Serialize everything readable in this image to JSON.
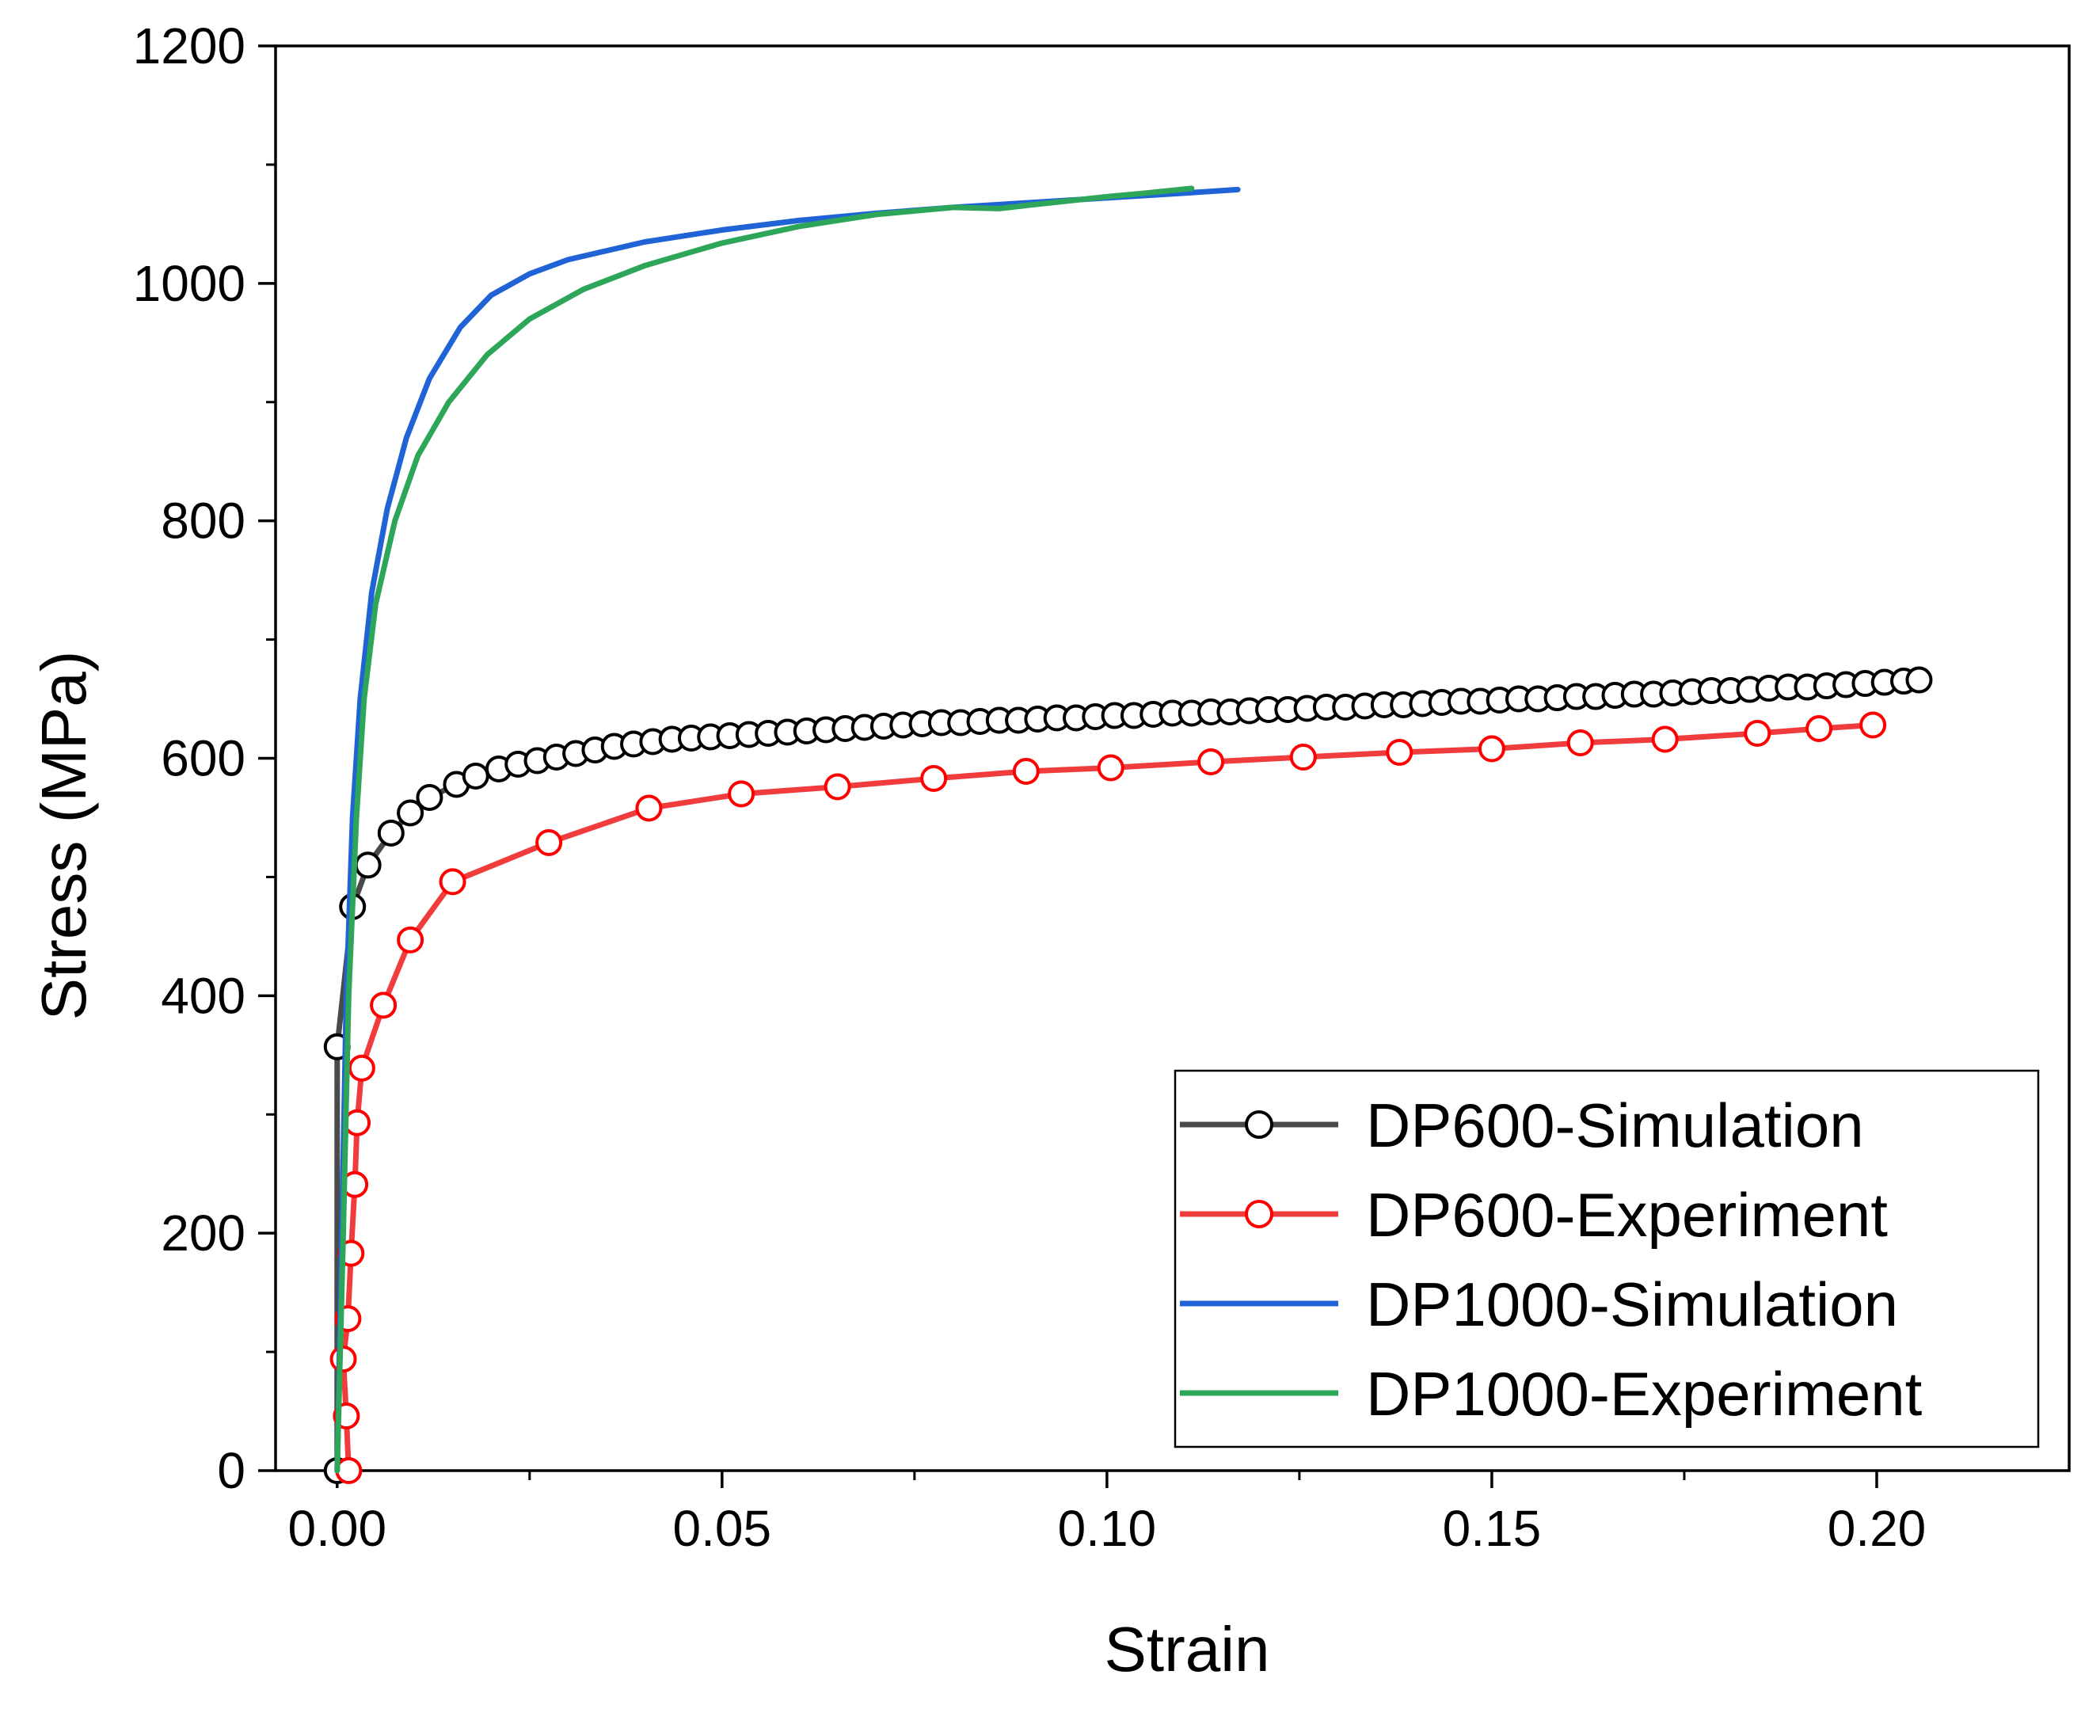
{
  "chart_data": {
    "type": "line",
    "title": "",
    "xlabel": "Strain",
    "ylabel": "Stress (MPa)",
    "xlim": [
      -0.008,
      0.225
    ],
    "ylim": [
      0,
      1200
    ],
    "x_ticks": [
      0.0,
      0.05,
      0.1,
      0.15,
      0.2
    ],
    "x_tick_labels": [
      "0.00",
      "0.05",
      "0.10",
      "0.15",
      "0.20"
    ],
    "y_ticks": [
      0,
      200,
      400,
      600,
      800,
      1000,
      1200
    ],
    "y_tick_labels": [
      "0",
      "200",
      "400",
      "600",
      "800",
      "1000",
      "1200"
    ],
    "grid": false,
    "legend_position": "bottom-right",
    "series": [
      {
        "name": "DP600-Simulation",
        "color": "#4a4a4a",
        "marker": "open-circle",
        "marker_color": "#000000",
        "x": [
          0.0,
          0.0,
          0.002,
          0.004,
          0.007,
          0.0095,
          0.012,
          0.0155,
          0.018,
          0.021,
          0.0235,
          0.026,
          0.0285,
          0.031,
          0.0335,
          0.036,
          0.0385,
          0.041,
          0.0435,
          0.046,
          0.0485,
          0.051,
          0.0535,
          0.056,
          0.0585,
          0.061,
          0.0635,
          0.066,
          0.0685,
          0.071,
          0.0735,
          0.076,
          0.0785,
          0.081,
          0.0835,
          0.086,
          0.0885,
          0.091,
          0.0935,
          0.096,
          0.0985,
          0.101,
          0.1035,
          0.106,
          0.1085,
          0.111,
          0.1135,
          0.116,
          0.1185,
          0.121,
          0.1235,
          0.126,
          0.1285,
          0.131,
          0.1335,
          0.136,
          0.1385,
          0.141,
          0.1435,
          0.146,
          0.1485,
          0.151,
          0.1535,
          0.156,
          0.1585,
          0.161,
          0.1635,
          0.166,
          0.1685,
          0.171,
          0.1735,
          0.176,
          0.1785,
          0.181,
          0.1835,
          0.186,
          0.1885,
          0.191,
          0.1935,
          0.196,
          0.1985,
          0.201,
          0.2035,
          0.2055
        ],
        "y": [
          0,
          357,
          475,
          510,
          537,
          554,
          567,
          578,
          585,
          591,
          595,
          598,
          601,
          604,
          607,
          610,
          612,
          614,
          616,
          617,
          618,
          619,
          620,
          621,
          622,
          623,
          624,
          625,
          626,
          627,
          628,
          629,
          630,
          630,
          631,
          632,
          632,
          633,
          634,
          634,
          635,
          636,
          636,
          637,
          638,
          638,
          639,
          639,
          640,
          641,
          641,
          642,
          643,
          643,
          644,
          645,
          645,
          646,
          647,
          648,
          648,
          649,
          650,
          650,
          651,
          652,
          652,
          653,
          654,
          654,
          655,
          656,
          657,
          657,
          658,
          659,
          660,
          660,
          661,
          662,
          663,
          664,
          665,
          666
        ]
      },
      {
        "name": "DP600-Experiment",
        "color": "#f03c3c",
        "marker": "open-circle",
        "marker_color": "#ff0000",
        "x": [
          0.0015,
          0.0012,
          0.0008,
          0.0014,
          0.0018,
          0.0023,
          0.0026,
          0.0032,
          0.006,
          0.0095,
          0.015,
          0.0275,
          0.0405,
          0.0525,
          0.065,
          0.0775,
          0.0895,
          0.1005,
          0.1135,
          0.1255,
          0.138,
          0.15,
          0.1615,
          0.1725,
          0.1845,
          0.1925,
          0.1995
        ],
        "y": [
          0,
          46,
          94,
          128,
          183,
          241,
          293,
          339,
          392,
          447,
          496,
          529,
          558,
          570,
          576,
          583,
          589,
          592,
          597,
          601,
          605,
          608,
          613,
          616,
          621,
          625,
          628
        ]
      },
      {
        "name": "DP1000-Simulation",
        "color": "#1f63d6",
        "marker": "none",
        "x": [
          0.0,
          0.0006,
          0.0012,
          0.002,
          0.003,
          0.0045,
          0.0065,
          0.009,
          0.012,
          0.016,
          0.02,
          0.025,
          0.03,
          0.04,
          0.05,
          0.06,
          0.07,
          0.08,
          0.09,
          0.1,
          0.11,
          0.117
        ],
        "y": [
          0,
          200,
          400,
          550,
          650,
          740,
          810,
          870,
          920,
          963,
          990,
          1008,
          1020,
          1035,
          1045,
          1053,
          1059,
          1064,
          1068,
          1072,
          1076,
          1079
        ]
      },
      {
        "name": "DP1000-Experiment",
        "color": "#2ea65a",
        "marker": "none",
        "x": [
          0.0,
          0.0008,
          0.0015,
          0.0025,
          0.0035,
          0.005,
          0.0075,
          0.0105,
          0.0145,
          0.0195,
          0.025,
          0.032,
          0.04,
          0.05,
          0.06,
          0.07,
          0.08,
          0.086,
          0.09,
          0.1,
          0.105,
          0.111
        ],
        "y": [
          0,
          200,
          400,
          550,
          650,
          730,
          800,
          855,
          900,
          940,
          970,
          995,
          1015,
          1034,
          1048,
          1058,
          1064,
          1063,
          1066,
          1073,
          1076,
          1080
        ]
      }
    ]
  }
}
